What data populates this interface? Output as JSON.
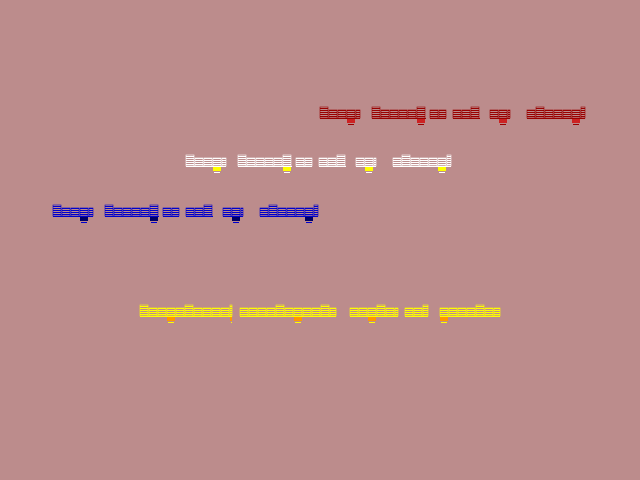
{
  "lines": [
    {
      "color": "#990000",
      "accent": "#cc2222"
    },
    {
      "color": "#ffffff",
      "accent": "#ffff00"
    },
    {
      "color": "#0000cc",
      "accent": "#000066"
    },
    {
      "color": "#ffff00",
      "accent": "#ff9900"
    }
  ]
}
